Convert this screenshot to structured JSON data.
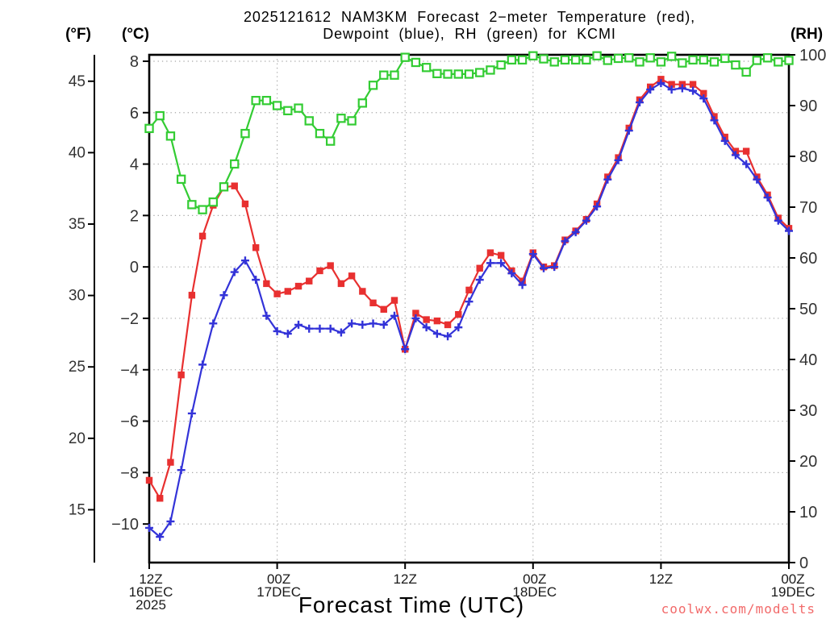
{
  "title": {
    "line1": "2025121612 NAM3KM Forecast 2−meter Temperature (red),",
    "line2": "Dewpoint (blue), RH (green) for KCMI"
  },
  "axis_headers": {
    "fahrenheit": "(°F)",
    "celsius": "(°C)",
    "rh": "(RH)"
  },
  "x_axis_title": "Forecast Time (UTC)",
  "watermark": "coolwx.com/modelts",
  "colors": {
    "temperature": "#e83030",
    "dewpoint": "#3333d8",
    "rh": "#33cc33",
    "grid": "#a8a8a8",
    "axis": "#000000",
    "tick_text": "#333333",
    "watermark": "#f26a6a"
  },
  "chart_data": {
    "type": "line",
    "station": "KCMI",
    "model_run": "2025121612 NAM3KM",
    "time_start": "12Z 16DEC 2025",
    "time_end": "00Z 19DEC 2025",
    "interval_hours": 1,
    "x_axis": {
      "ticks": [
        {
          "hour": 0,
          "label": "12Z",
          "date": "16DEC",
          "year": "2025",
          "dx": 2
        },
        {
          "hour": 12,
          "label": "00Z",
          "date": "17DEC",
          "year": "",
          "dx": 2
        },
        {
          "hour": 24,
          "label": "12Z",
          "date": "",
          "year": "",
          "dx": 0
        },
        {
          "hour": 36,
          "label": "00Z",
          "date": "18DEC",
          "year": "",
          "dx": 2
        },
        {
          "hour": 48,
          "label": "12Z",
          "date": "",
          "year": "",
          "dx": 0
        },
        {
          "hour": 60,
          "label": "00Z",
          "date": "19DEC",
          "year": "",
          "dx": 5
        }
      ],
      "gridline_hours": [
        12,
        24,
        36,
        48
      ]
    },
    "y_axis_celsius": {
      "min": -11.5,
      "max": 8.25,
      "ticks": [
        8,
        6,
        4,
        2,
        0,
        -2,
        -4,
        -6,
        -8,
        -10
      ]
    },
    "y_axis_fahrenheit": {
      "ticks": [
        45,
        40,
        35,
        30,
        25,
        20,
        15
      ]
    },
    "y_axis_rh": {
      "min": 0,
      "max": 100,
      "ticks": [
        0,
        10,
        20,
        30,
        40,
        50,
        60,
        70,
        80,
        90,
        100
      ]
    },
    "series": [
      {
        "name": "2-meter Temperature",
        "color_key": "temperature",
        "marker": "square",
        "unit": "degC",
        "values": [
          -8.3,
          -9.0,
          -7.6,
          -4.2,
          -1.1,
          1.2,
          2.4,
          3.1,
          3.15,
          2.45,
          0.75,
          -0.65,
          -1.05,
          -0.95,
          -0.75,
          -0.55,
          -0.15,
          0.05,
          -0.65,
          -0.35,
          -0.95,
          -1.4,
          -1.65,
          -1.3,
          -3.2,
          -1.8,
          -2.05,
          -2.1,
          -2.25,
          -1.85,
          -0.9,
          -0.05,
          0.55,
          0.45,
          -0.15,
          -0.55,
          0.55,
          0.0,
          0.05,
          1.05,
          1.4,
          1.85,
          2.45,
          3.5,
          4.25,
          5.4,
          6.5,
          7.0,
          7.3,
          7.1,
          7.1,
          7.1,
          6.75,
          5.85,
          5.05,
          4.5,
          4.5,
          3.5,
          2.8,
          1.9,
          1.5
        ]
      },
      {
        "name": "Dewpoint",
        "color_key": "dewpoint",
        "marker": "plus",
        "unit": "degC",
        "values": [
          -10.15,
          -10.5,
          -9.9,
          -7.9,
          -5.7,
          -3.8,
          -2.2,
          -1.1,
          -0.2,
          0.25,
          -0.5,
          -1.9,
          -2.5,
          -2.6,
          -2.25,
          -2.4,
          -2.4,
          -2.4,
          -2.55,
          -2.2,
          -2.25,
          -2.2,
          -2.25,
          -1.9,
          -3.2,
          -2.0,
          -2.35,
          -2.6,
          -2.7,
          -2.35,
          -1.35,
          -0.5,
          0.15,
          0.15,
          -0.25,
          -0.7,
          0.5,
          -0.05,
          0.0,
          1.0,
          1.35,
          1.8,
          2.35,
          3.4,
          4.15,
          5.3,
          6.4,
          6.9,
          7.15,
          6.9,
          6.95,
          6.85,
          6.55,
          5.7,
          4.9,
          4.35,
          4.0,
          3.4,
          2.7,
          1.8,
          1.4
        ]
      },
      {
        "name": "RH",
        "color_key": "rh",
        "marker": "open-square",
        "unit": "%",
        "values": [
          85.5,
          88,
          84,
          75.5,
          70.5,
          69.5,
          71,
          74,
          78.5,
          84.5,
          91,
          91,
          90,
          89,
          89.5,
          87,
          84.5,
          83,
          87.5,
          87,
          90.5,
          94,
          96,
          96,
          99.5,
          98.5,
          97.5,
          96.3,
          96.2,
          96.2,
          96.2,
          96.5,
          97,
          98,
          99,
          99,
          99.8,
          99.2,
          98.6,
          99,
          99,
          99,
          99.8,
          98.9,
          99.3,
          99.4,
          98.6,
          99.4,
          98.6,
          99.7,
          98.4,
          99,
          99,
          98.6,
          99.3,
          98,
          96.6,
          98.9,
          99.4,
          98.6,
          98.9
        ]
      }
    ]
  }
}
